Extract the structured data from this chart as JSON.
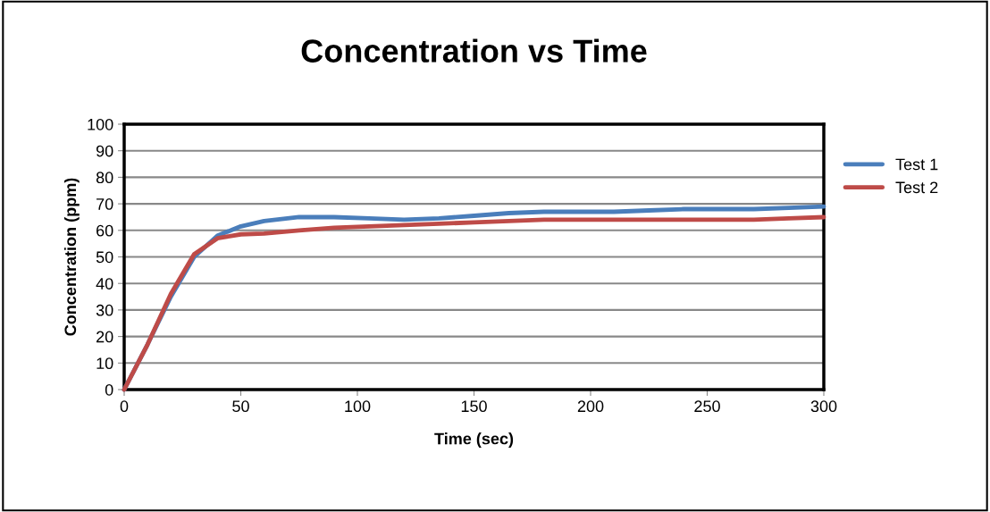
{
  "chart_data": {
    "type": "line",
    "title": "Concentration vs Time",
    "xlabel": "Time (sec)",
    "ylabel": "Concentration (ppm)",
    "x": [
      0,
      10,
      20,
      30,
      40,
      50,
      60,
      75,
      90,
      105,
      120,
      135,
      150,
      165,
      180,
      195,
      210,
      225,
      240,
      255,
      270,
      285,
      300
    ],
    "series": [
      {
        "name": "Test 1",
        "color": "#4a7ebb",
        "values": [
          0,
          17,
          35,
          50,
          58,
          61.5,
          63.5,
          65,
          65,
          64.5,
          64,
          64.5,
          65.5,
          66.5,
          67,
          67,
          67,
          67.5,
          68,
          68,
          68,
          68.5,
          69
        ]
      },
      {
        "name": "Test 2",
        "color": "#be4b48",
        "values": [
          0,
          17,
          36,
          51,
          57,
          58.5,
          58.8,
          60,
          61,
          61.5,
          62,
          62.5,
          63,
          63.5,
          64,
          64,
          64,
          64,
          64,
          64,
          64,
          64.5,
          65
        ]
      }
    ],
    "xlim": [
      0,
      300
    ],
    "xticks": [
      0,
      50,
      100,
      150,
      200,
      250,
      300
    ],
    "ylim": [
      0,
      100
    ],
    "yticks": [
      0,
      10,
      20,
      30,
      40,
      50,
      60,
      70,
      80,
      90,
      100
    ],
    "grid": "y",
    "legend": "right",
    "marker": "none",
    "line_style": "solid"
  }
}
